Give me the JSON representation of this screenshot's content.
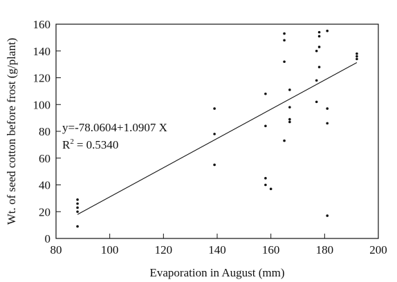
{
  "chart_data": {
    "type": "scatter",
    "title": "",
    "xlabel": "Evaporation in August (mm)",
    "ylabel": "Wt. of seed cotton before frost (g/plant)",
    "xlim": [
      80,
      200
    ],
    "ylim": [
      0,
      160
    ],
    "xticks": [
      80,
      100,
      120,
      140,
      160,
      180,
      200
    ],
    "yticks": [
      0,
      20,
      40,
      60,
      80,
      100,
      120,
      140,
      160
    ],
    "xtick_labels": [
      "80",
      "100",
      "120",
      "140",
      "160",
      "180",
      "200"
    ],
    "ytick_labels": [
      "0",
      "20",
      "40",
      "60",
      "80",
      "100",
      "120",
      "140",
      "160"
    ],
    "grid": false,
    "points": [
      {
        "x": 88,
        "y": 29
      },
      {
        "x": 88,
        "y": 26
      },
      {
        "x": 88,
        "y": 23
      },
      {
        "x": 88,
        "y": 20
      },
      {
        "x": 88,
        "y": 9
      },
      {
        "x": 139,
        "y": 97
      },
      {
        "x": 139,
        "y": 78
      },
      {
        "x": 139,
        "y": 55
      },
      {
        "x": 158,
        "y": 108
      },
      {
        "x": 158,
        "y": 84
      },
      {
        "x": 158,
        "y": 45
      },
      {
        "x": 158,
        "y": 40
      },
      {
        "x": 160,
        "y": 37
      },
      {
        "x": 165,
        "y": 153
      },
      {
        "x": 165,
        "y": 148
      },
      {
        "x": 165,
        "y": 132
      },
      {
        "x": 165,
        "y": 73
      },
      {
        "x": 167,
        "y": 111
      },
      {
        "x": 167,
        "y": 98
      },
      {
        "x": 167,
        "y": 89
      },
      {
        "x": 167,
        "y": 87
      },
      {
        "x": 177,
        "y": 140
      },
      {
        "x": 177,
        "y": 118
      },
      {
        "x": 177,
        "y": 102
      },
      {
        "x": 178,
        "y": 154
      },
      {
        "x": 178,
        "y": 151
      },
      {
        "x": 178,
        "y": 143
      },
      {
        "x": 178,
        "y": 128
      },
      {
        "x": 181,
        "y": 155
      },
      {
        "x": 181,
        "y": 97
      },
      {
        "x": 181,
        "y": 86
      },
      {
        "x": 181,
        "y": 17
      },
      {
        "x": 192,
        "y": 138
      },
      {
        "x": 192,
        "y": 136
      },
      {
        "x": 192,
        "y": 134
      }
    ],
    "regression": {
      "intercept": -78.0604,
      "slope": 1.0907,
      "x_range": [
        88,
        192
      ],
      "equation_label": "y=-78.0604+1.0907 X",
      "r2_label": "R",
      "r2_exponent": "2",
      "r2_value": "= 0.5340"
    }
  }
}
